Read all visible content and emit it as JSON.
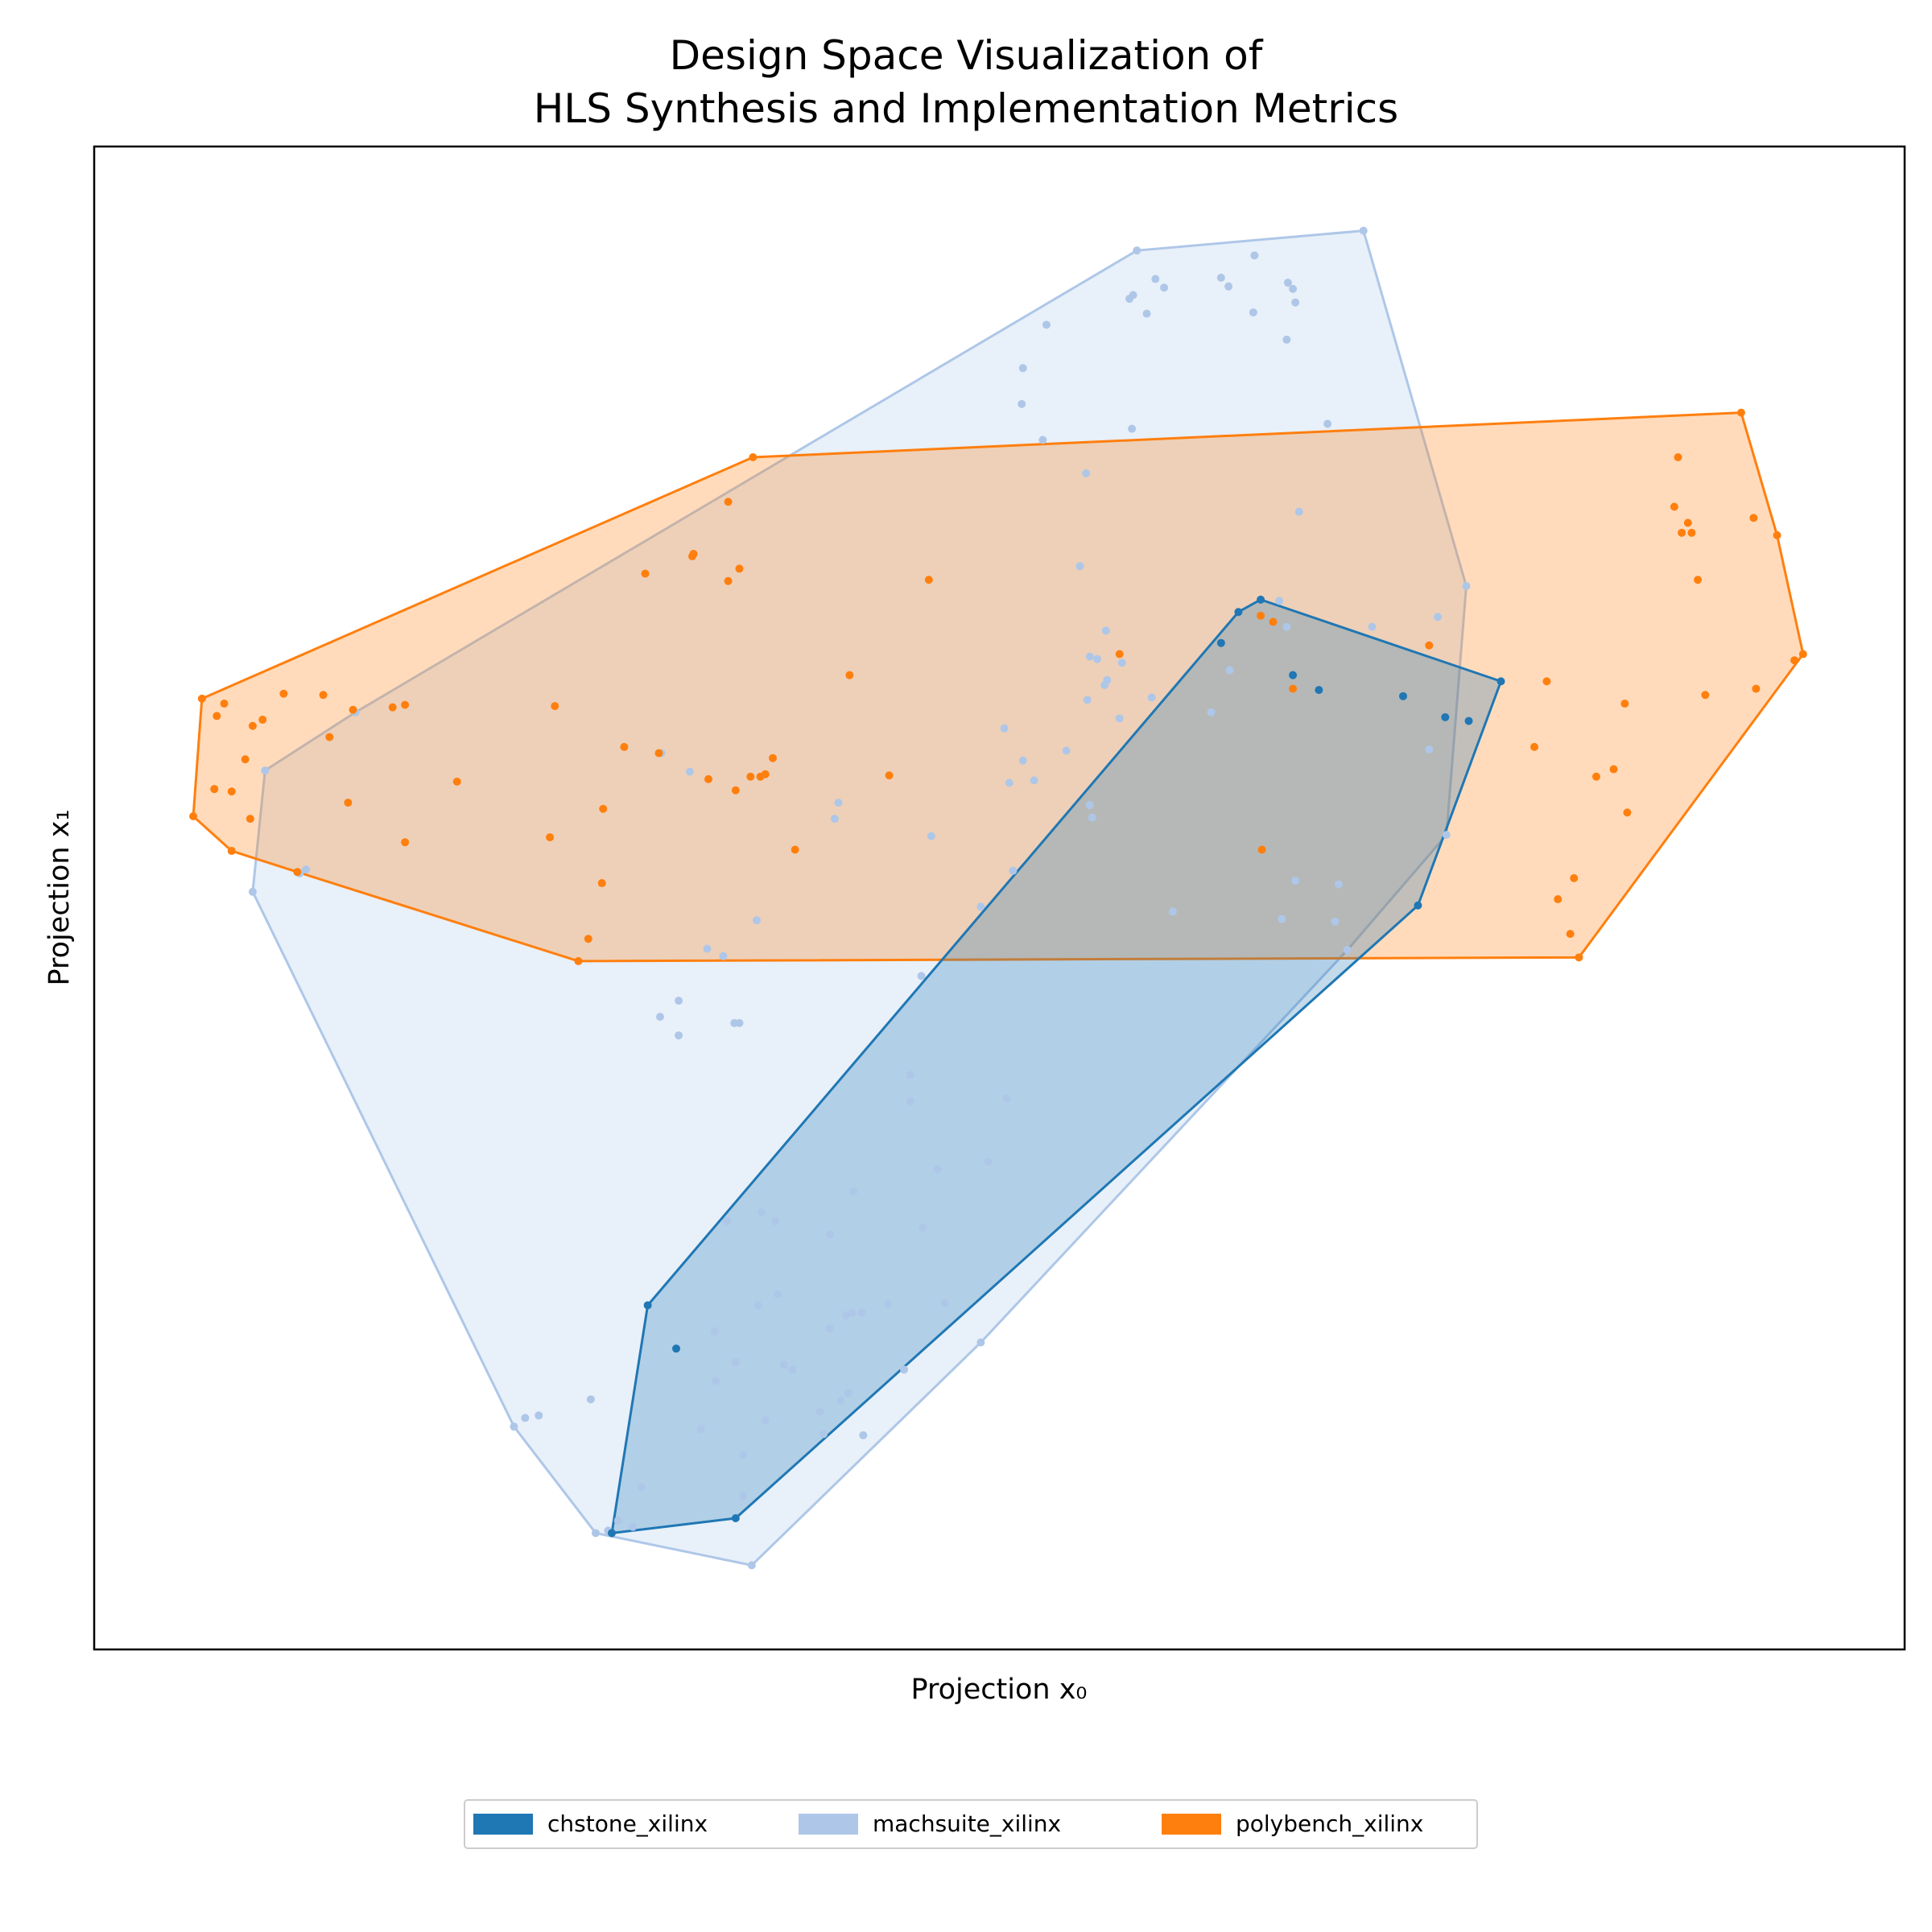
{
  "chart_data": {
    "type": "scatter",
    "title": "Design Space Visualization of\nHLS Synthesis and Implementation Metrics",
    "x_label": "Projection x₀",
    "y_label": "Projection x₁",
    "xlim": [
      0,
      1462
    ],
    "ylim": [
      0,
      1214
    ],
    "legend": "bottom",
    "hulls": true,
    "series": [
      {
        "name": "chstone_xilinx",
        "color": "#1f77b4",
        "x": [
          1136,
          942,
          924,
          910,
          968,
          989,
          1057,
          1091,
          1110,
          1069,
          447,
          470,
          518,
          418
        ],
        "y": [
          782,
          848,
          838,
          813,
          787,
          775,
          770,
          753,
          750,
          601,
          278,
          243,
          106,
          94
        ]
      },
      {
        "name": "machsuite_xilinx",
        "color": "#aec7e8",
        "x": [
          842,
          1025,
          937,
          910,
          916,
          857,
          864,
          836,
          839,
          964,
          968,
          970,
          850,
          936,
          963,
          769,
          750,
          749,
          766,
          838,
          996,
          801,
          973,
          796,
          817,
          804,
          810,
          830,
          818,
          816,
          802,
          854,
          828,
          917,
          902,
          957,
          963,
          1032,
          1085,
          1108,
          1078,
          735,
          750,
          785,
          739,
          759,
          804,
          806,
          601,
          598,
          676,
          742,
          716,
          871,
          959,
          970,
          1005,
          1002,
          1012,
          1092,
          535,
          495,
          508,
          668,
          472,
          457,
          472,
          517,
          521,
          458,
          481,
          211,
          138,
          171,
          166,
          128,
          659,
          659,
          737,
          681,
          722,
          613,
          511,
          539,
          550,
          669,
          594,
          552,
          536,
          641,
          687,
          612,
          607,
          620,
          594,
          501,
          518,
          557,
          564,
          654,
          716,
          502,
          609,
          603,
          586,
          542,
          490,
          589,
          621,
          401,
          359,
          348,
          339,
          524,
          442,
          524,
          423,
          435,
          405,
          415,
          531
        ],
        "y": [
          1130,
          1146,
          1126,
          1108,
          1101,
          1107,
          1100,
          1091,
          1094,
          1104,
          1099,
          1088,
          1079,
          1080,
          1058,
          1070,
          1035,
          1006,
          977,
          986,
          990,
          950,
          919,
          875,
          823,
          802,
          800,
          797,
          783,
          779,
          767,
          769,
          752,
          791,
          757,
          847,
          826,
          826,
          834,
          859,
          727,
          744,
          718,
          726,
          700,
          702,
          682,
          672,
          684,
          671,
          657,
          629,
          600,
          596,
          590,
          621,
          618,
          588,
          565,
          658,
          589,
          566,
          560,
          544,
          524,
          511,
          496,
          506,
          506,
          724,
          709,
          757,
          710,
          630,
          627,
          612,
          464,
          443,
          445,
          388,
          394,
          370,
          346,
          353,
          346,
          341,
          335,
          287,
          278,
          279,
          280,
          272,
          270,
          272,
          259,
          257,
          232,
          230,
          226,
          226,
          248,
          217,
          207,
          201,
          192,
          185,
          178,
          174,
          173,
          202,
          189,
          187,
          180,
          157,
          131,
          124,
          104,
          99,
          94,
          96,
          68
        ]
      },
      {
        "name": "polybench_xilinx",
        "color": "#ff7f0e",
        "x": [
          1330,
          1279,
          1276,
          1287,
          1282,
          1290,
          1340,
          1359,
          1295,
          1380,
          1373,
          1342,
          1301,
          1236,
          1173,
          1163,
          1227,
          1213,
          1238,
          1195,
          1182,
          1192,
          1199,
          1078,
          942,
          952,
          968,
          943,
          828,
          674,
          610,
          642,
          566,
          532,
          512,
          484,
          483,
          521,
          512,
          445,
          372,
          428,
          456,
          548,
          542,
          538,
          530,
          518,
          496,
          411,
          368,
          410,
          399,
          391,
          293,
          251,
          241,
          209,
          190,
          205,
          251,
          185,
          153,
          136,
          128,
          105,
          99,
          87,
          122,
          97,
          111,
          126,
          80,
          111,
          164
        ],
        "y": [
          999,
          963,
          923,
          910,
          902,
          902,
          914,
          900,
          864,
          804,
          799,
          776,
          771,
          764,
          782,
          729,
          711,
          705,
          676,
          623,
          606,
          578,
          559,
          811,
          835,
          830,
          776,
          646,
          804,
          864,
          787,
          706,
          646,
          963,
          927,
          885,
          883,
          873,
          863,
          869,
          762,
          729,
          724,
          720,
          707,
          705,
          705,
          694,
          703,
          679,
          656,
          619,
          574,
          556,
          701,
          763,
          761,
          759,
          737,
          684,
          652,
          771,
          772,
          751,
          746,
          764,
          754,
          768,
          719,
          695,
          693,
          671,
          673,
          645,
          628
        ]
      }
    ]
  }
}
